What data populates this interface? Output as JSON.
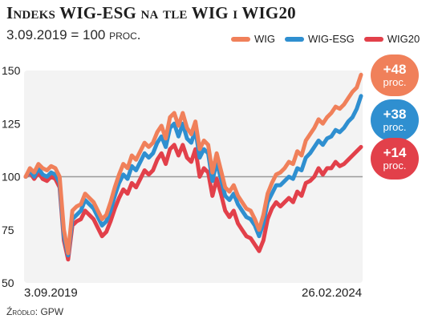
{
  "title": "Indeks WIG-ESG na tle WIG i WIG20",
  "subtitle": "3.09.2019 = 100 proc.",
  "source": "Źródło: GPW",
  "chart_data": {
    "type": "line",
    "title": "Indeks WIG-ESG na tle WIG i WIG20",
    "subtitle": "3.09.2019 = 100 proc.",
    "ylim": [
      50,
      150
    ],
    "yticks": [
      50,
      75,
      100,
      125,
      150
    ],
    "reference_line": 100,
    "x_start_label": "3.09.2019",
    "x_end_label": "26.02.2024",
    "legend_position": "top-right",
    "grid": false,
    "series": [
      {
        "name": "WIG",
        "color": "#f0805a",
        "values": [
          100,
          104,
          102,
          106,
          104,
          103,
          105,
          104,
          100,
          75,
          64,
          84,
          86,
          87,
          92,
          90,
          88,
          84,
          80,
          82,
          88,
          95,
          101,
          106,
          104,
          110,
          108,
          112,
          116,
          114,
          116,
          121,
          124,
          118,
          128,
          130,
          124,
          130,
          123,
          120,
          126,
          113,
          117,
          115,
          102,
          111,
          103,
          95,
          93,
          96,
          91,
          88,
          85,
          84,
          80,
          75,
          82,
          92,
          97,
          101,
          102,
          104,
          107,
          106,
          112,
          110,
          117,
          120,
          123,
          127,
          125,
          128,
          130,
          133,
          132,
          134,
          137,
          140,
          142,
          148
        ]
      },
      {
        "name": "WIG-ESG",
        "color": "#2f8fd0",
        "values": [
          100,
          103,
          100,
          104,
          101,
          100,
          102,
          101,
          97,
          72,
          63,
          80,
          82,
          84,
          89,
          87,
          85,
          81,
          77,
          79,
          84,
          91,
          97,
          101,
          99,
          105,
          103,
          107,
          111,
          109,
          111,
          116,
          119,
          114,
          123,
          125,
          119,
          125,
          118,
          116,
          122,
          109,
          113,
          111,
          98,
          107,
          99,
          91,
          89,
          92,
          87,
          84,
          81,
          80,
          77,
          72,
          78,
          88,
          92,
          96,
          96,
          98,
          100,
          99,
          104,
          103,
          109,
          111,
          114,
          117,
          115,
          118,
          119,
          122,
          121,
          123,
          126,
          128,
          132,
          138
        ]
      },
      {
        "name": "WIG20",
        "color": "#e2404a",
        "values": [
          100,
          102,
          99,
          102,
          99,
          98,
          100,
          99,
          95,
          70,
          61,
          77,
          79,
          80,
          84,
          82,
          80,
          76,
          72,
          74,
          79,
          85,
          90,
          94,
          92,
          97,
          95,
          99,
          103,
          101,
          103,
          108,
          111,
          106,
          113,
          115,
          110,
          115,
          109,
          107,
          113,
          100,
          104,
          102,
          91,
          99,
          92,
          84,
          81,
          84,
          78,
          75,
          72,
          71,
          68,
          65,
          70,
          80,
          85,
          88,
          86,
          88,
          90,
          88,
          93,
          91,
          97,
          98,
          100,
          104,
          101,
          104,
          104,
          107,
          105,
          106,
          108,
          110,
          112,
          114
        ]
      }
    ],
    "end_labels": [
      {
        "series": "WIG",
        "value": "+48",
        "unit": "proc.",
        "color": "#f0805a"
      },
      {
        "series": "WIG-ESG",
        "value": "+38",
        "unit": "proc.",
        "color": "#2f8fd0"
      },
      {
        "series": "WIG20",
        "value": "+14",
        "unit": "proc.",
        "color": "#e2404a"
      }
    ]
  }
}
